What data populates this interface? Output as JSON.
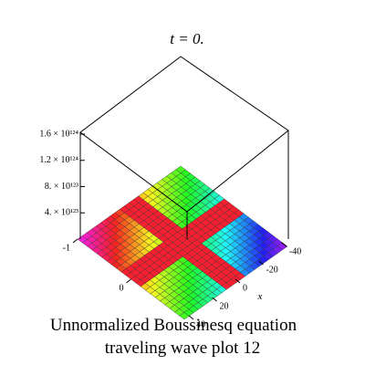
{
  "chart_data": {
    "type": "surface3d",
    "title": "t = 0.",
    "caption": [
      "Unnormalized Boussinesq equation",
      "traveling wave plot 12"
    ],
    "x_label": "x",
    "xlim": [
      -44,
      44
    ],
    "xticks": [
      -40,
      -20,
      0,
      20,
      40
    ],
    "ylim": [
      -1,
      1
    ],
    "yticks": [
      -1,
      0
    ],
    "zlim": [
      0,
      1.6e+124
    ],
    "zticks": [
      {
        "value": 4e+123,
        "label": "4. × 10¹²³"
      },
      {
        "value": 8e+123,
        "label": "8. × 10¹²³"
      },
      {
        "value": 1.2e+124,
        "label": "1.2 × 10¹²⁴"
      },
      {
        "value": 1.6e+124,
        "label": "1.6 × 10¹²⁴"
      }
    ]
  }
}
